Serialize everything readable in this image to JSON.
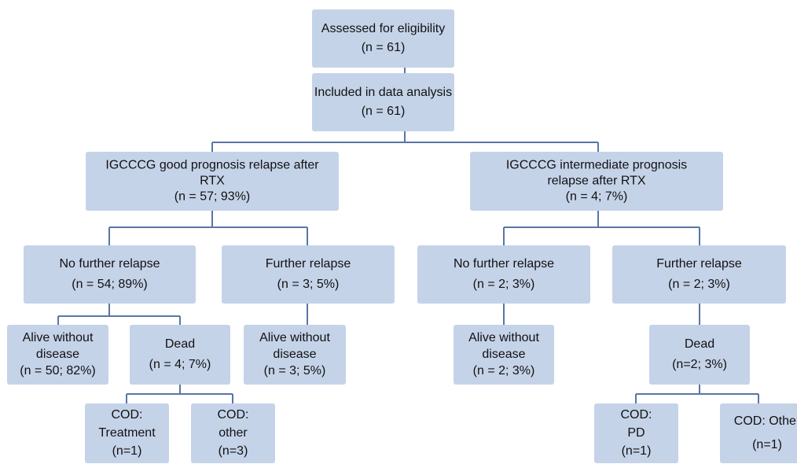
{
  "nodes": [
    {
      "lines": [
        "Assessed for eligibility",
        "(n = 61)"
      ]
    },
    {
      "lines": [
        "Included in data analysis",
        "(n = 61)"
      ]
    },
    {
      "lines": [
        "IGCCCG good prognosis relapse after",
        "RTX",
        "(n = 57; 93%)"
      ]
    },
    {
      "lines": [
        "IGCCCG intermediate prognosis",
        "relapse after RTX",
        "(n = 4; 7%)"
      ]
    },
    {
      "lines": [
        "No further relapse",
        "(n = 54; 89%)"
      ]
    },
    {
      "lines": [
        "Further relapse",
        "(n = 3; 5%)"
      ]
    },
    {
      "lines": [
        "No further relapse",
        "(n = 2; 3%)"
      ]
    },
    {
      "lines": [
        "Further relapse",
        "(n = 2; 3%)"
      ]
    },
    {
      "lines": [
        "Alive without",
        "disease",
        "(n = 50; 82%)"
      ]
    },
    {
      "lines": [
        "Dead",
        "(n = 4; 7%)"
      ]
    },
    {
      "lines": [
        "Alive without",
        "disease",
        "(n = 3; 5%)"
      ]
    },
    {
      "lines": [
        "Alive without",
        "disease",
        "(n = 2; 3%)"
      ]
    },
    {
      "lines": [
        "Dead",
        "(n=2; 3%)"
      ]
    },
    {
      "lines": [
        "COD:",
        "Treatment",
        "(n=1)"
      ]
    },
    {
      "lines": [
        "COD:",
        "other",
        "(n=3)"
      ]
    },
    {
      "lines": [
        "COD:",
        "PD",
        "(n=1)"
      ]
    },
    {
      "lines": [
        "COD: Other",
        "(n=1)"
      ]
    }
  ]
}
